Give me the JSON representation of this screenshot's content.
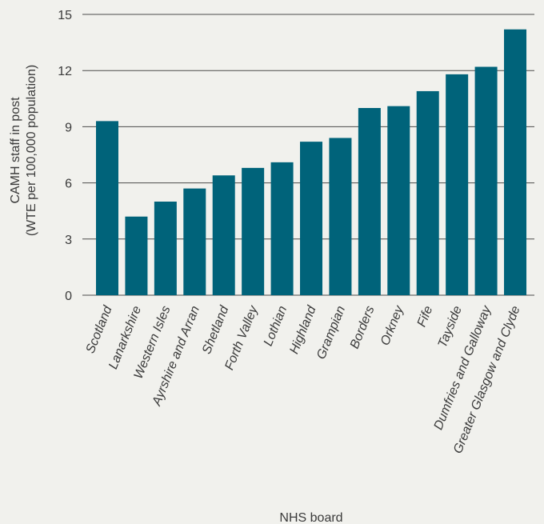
{
  "chart_data": {
    "type": "bar",
    "title": "",
    "xlabel": "NHS board",
    "ylabel_line1": "CAMH staff in post",
    "ylabel_line2": "(WTE per 100,000 population)",
    "ylim": [
      0,
      15
    ],
    "yticks": [
      0,
      3,
      6,
      9,
      12,
      15
    ],
    "grid": "horizontal",
    "legend": "none",
    "bar_color": "#00637a",
    "categories": [
      "Scotland",
      "Lanarkshire",
      "Western Isles",
      "Ayrshire and Arran",
      "Shetland",
      "Forth Valley",
      "Lothian",
      "Highland",
      "Grampian",
      "Borders",
      "Orkney",
      "Fife",
      "Tayside",
      "Dumfries and Galloway",
      "Greater Glasgow and Clyde"
    ],
    "values": [
      9.3,
      4.2,
      5.0,
      5.7,
      6.4,
      6.8,
      7.1,
      8.2,
      8.4,
      10.0,
      10.1,
      10.9,
      11.8,
      12.2,
      14.2
    ]
  }
}
